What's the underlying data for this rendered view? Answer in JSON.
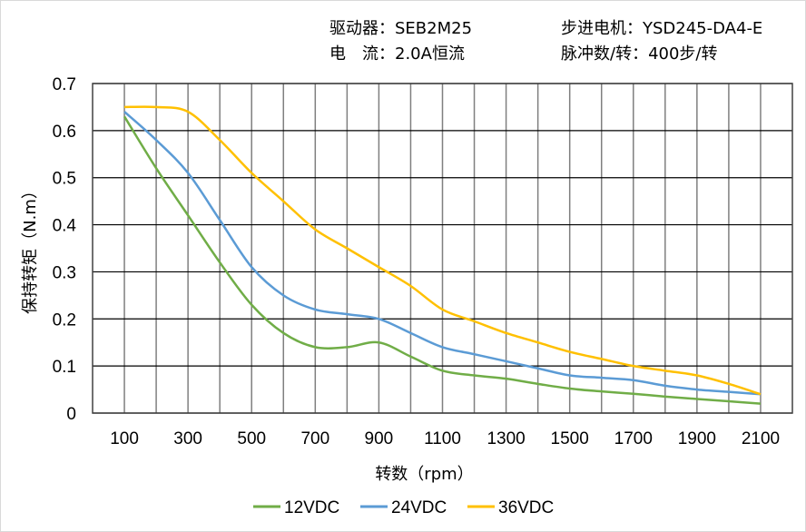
{
  "header": {
    "driver": "驱动器：SEB2M25",
    "current": "电　流：2.0A恒流",
    "motor": "步进电机：YSD245-DA4-E",
    "pulses": "脉冲数/转：400步/转"
  },
  "chart_data": {
    "type": "line",
    "xlabel": "转数（rpm）",
    "ylabel": "保持转矩（N.m）",
    "xlim": [
      0,
      2200
    ],
    "ylim": [
      0,
      0.7
    ],
    "xticks": [
      100,
      300,
      500,
      700,
      900,
      1100,
      1300,
      1500,
      1700,
      1900,
      2100
    ],
    "yticks": [
      0,
      0.1,
      0.2,
      0.3,
      0.4,
      0.5,
      0.6,
      0.7
    ],
    "grid": true,
    "legend": "bottom",
    "x": [
      100,
      200,
      300,
      400,
      500,
      600,
      700,
      800,
      900,
      1000,
      1100,
      1200,
      1300,
      1400,
      1500,
      1600,
      1700,
      1800,
      1900,
      2000,
      2100
    ],
    "series": [
      {
        "name": "12VDC",
        "color": "#70ad47",
        "values": [
          0.63,
          0.52,
          0.42,
          0.32,
          0.23,
          0.17,
          0.14,
          0.14,
          0.15,
          0.12,
          0.09,
          0.08,
          0.073,
          0.062,
          0.052,
          0.046,
          0.041,
          0.035,
          0.03,
          0.025,
          0.02
        ]
      },
      {
        "name": "24VDC",
        "color": "#5b9bd5",
        "values": [
          0.64,
          0.58,
          0.51,
          0.41,
          0.31,
          0.25,
          0.22,
          0.21,
          0.2,
          0.17,
          0.14,
          0.125,
          0.11,
          0.095,
          0.08,
          0.075,
          0.07,
          0.058,
          0.05,
          0.045,
          0.04
        ]
      },
      {
        "name": "36VDC",
        "color": "#ffc000",
        "values": [
          0.65,
          0.65,
          0.64,
          0.58,
          0.51,
          0.45,
          0.39,
          0.35,
          0.31,
          0.27,
          0.22,
          0.195,
          0.17,
          0.15,
          0.13,
          0.115,
          0.1,
          0.09,
          0.08,
          0.062,
          0.04
        ]
      }
    ]
  }
}
